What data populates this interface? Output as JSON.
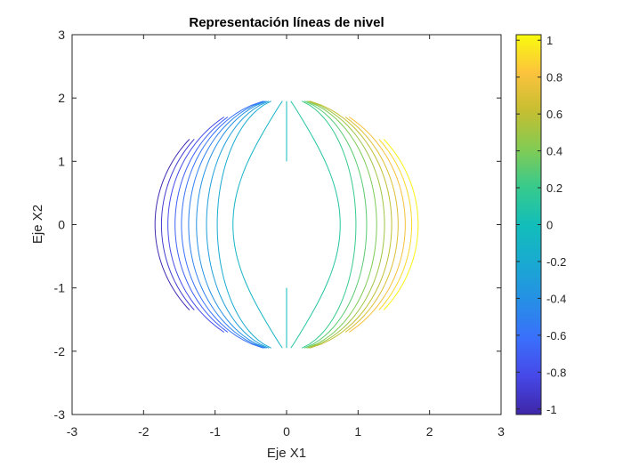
{
  "chart_data": {
    "type": "contour",
    "title": "Representación líneas de nivel",
    "xlabel": "Eje X1",
    "ylabel": "Eje X2",
    "xlim": [
      -3,
      3
    ],
    "ylim": [
      -3,
      3
    ],
    "xticks": [
      -3,
      -2,
      -1,
      0,
      1,
      2,
      3
    ],
    "yticks": [
      -3,
      -2,
      -1,
      0,
      1,
      2,
      3
    ],
    "grid": false,
    "colormap": "parula",
    "colorbar": {
      "position": "right",
      "clim": [
        -1.03,
        1.03
      ],
      "ticks": [
        -1,
        -0.8,
        -0.6,
        -0.4,
        -0.2,
        0,
        0.2,
        0.4,
        0.6,
        0.8,
        1
      ],
      "tick_labels": [
        "-1",
        "-0.8",
        "-0.6",
        "-0.4",
        "-0.2",
        "0",
        "0.2",
        "0.4",
        "0.6",
        "0.8",
        "1"
      ]
    },
    "contour_levels": [
      -1,
      -0.9,
      -0.8,
      -0.7,
      -0.6,
      -0.5,
      -0.4,
      -0.3,
      -0.2,
      -0.1,
      0,
      0.1,
      0.2,
      0.3,
      0.4,
      0.5,
      0.6,
      0.7,
      0.8,
      0.9,
      1
    ],
    "contour_value_at_vertex_x2_0": [
      -1.84,
      -1.75,
      -1.66,
      -1.56,
      -1.47,
      -1.37,
      -1.26,
      -1.12,
      -0.97,
      -0.75,
      0,
      0.75,
      0.97,
      1.12,
      1.26,
      1.37,
      1.47,
      1.56,
      1.66,
      1.75,
      1.84
    ],
    "x2_range_shown": [
      -1.95,
      1.95
    ]
  }
}
